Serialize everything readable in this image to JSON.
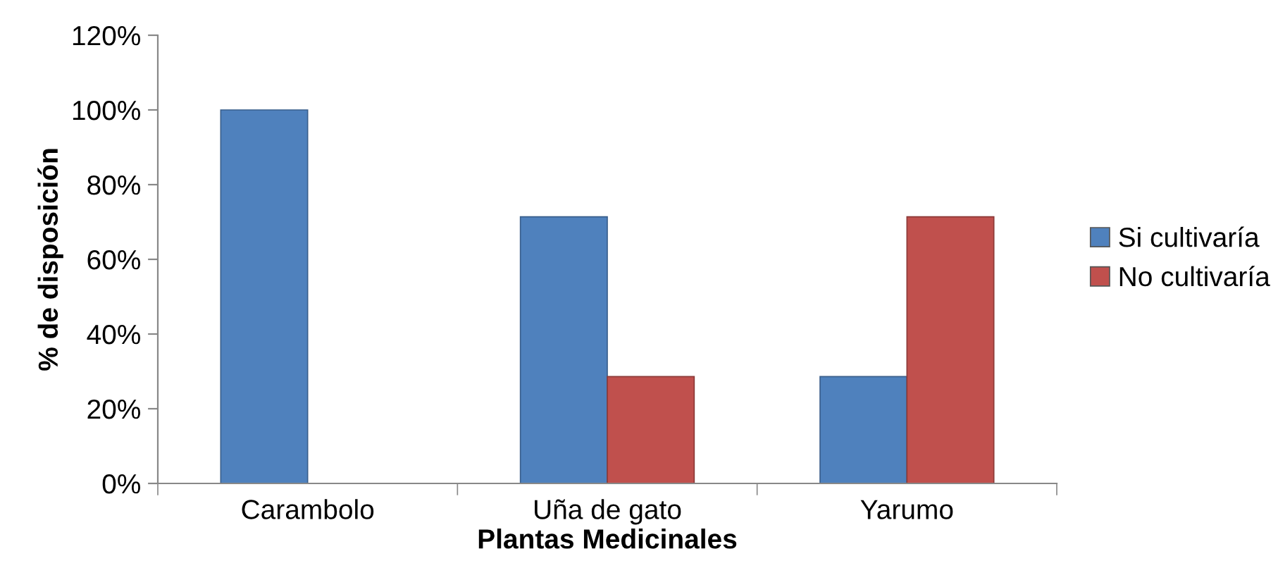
{
  "chart_data": {
    "type": "bar",
    "xlabel": "Plantas Medicinales",
    "ylabel": "% de disposición",
    "categories": [
      "Carambolo",
      "Uña de gato",
      "Yarumo"
    ],
    "series": [
      {
        "name": "Si cultivaría",
        "color": "#4f81bd",
        "values": [
          100,
          71.4,
          28.6
        ]
      },
      {
        "name": "No cultivaría",
        "color": "#c0504d",
        "values": [
          null,
          28.6,
          71.4
        ]
      }
    ],
    "ylim": [
      0,
      120
    ],
    "yticks": [
      {
        "value": 0,
        "label": "0%"
      },
      {
        "value": 20,
        "label": "20%"
      },
      {
        "value": 40,
        "label": "40%"
      },
      {
        "value": 60,
        "label": "60%"
      },
      {
        "value": 80,
        "label": "80%"
      },
      {
        "value": 100,
        "label": "100%"
      },
      {
        "value": 120,
        "label": "120%"
      }
    ],
    "grid": false,
    "legend": "right"
  }
}
